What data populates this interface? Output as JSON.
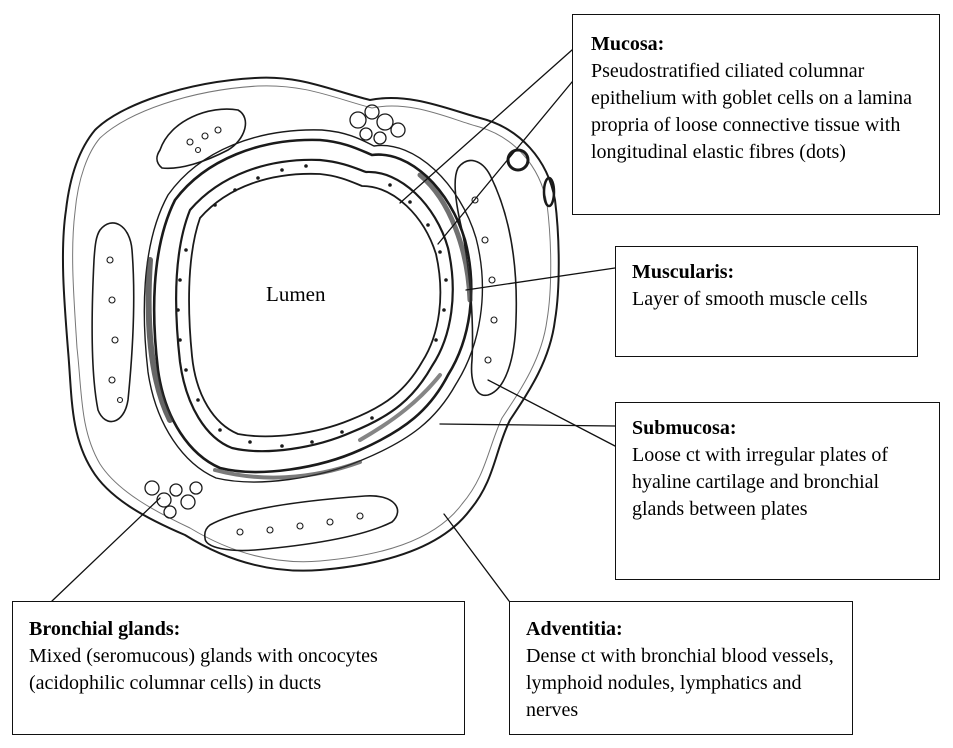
{
  "lumen_label": "Lumen",
  "labels": {
    "mucosa": {
      "title": "Mucosa:",
      "text": "Pseudostratified ciliated columnar epithelium with goblet cells on a lamina propria of loose connective tissue with longitudinal elastic fibres (dots)"
    },
    "muscularis": {
      "title": "Muscularis:",
      "text": "Layer of smooth muscle cells"
    },
    "submucosa": {
      "title": "Submucosa:",
      "text": "Loose ct with irregular plates of hyaline cartilage and bronchial glands between plates"
    },
    "bronchial_glands": {
      "title": "Bronchial glands:",
      "text": "Mixed (seromucous) glands with oncocytes (acidophilic columnar cells) in ducts"
    },
    "adventitia": {
      "title": "Adventitia:",
      "text": "Dense ct with bronchial blood vessels, lymphoid nodules, lymphatics and nerves"
    }
  },
  "colors": {
    "ink": "#1a1a1a",
    "shade": "#333333",
    "paper": "#ffffff"
  }
}
